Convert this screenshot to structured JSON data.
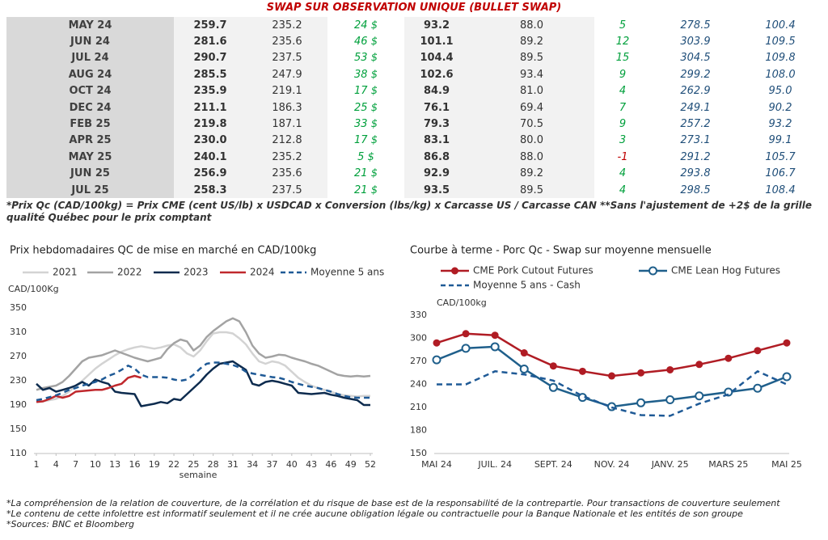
{
  "header": {
    "title": "SWAP SUR OBSERVATION UNIQUE (BULLET SWAP)"
  },
  "table": {
    "rows": [
      [
        "MAY 24",
        "259.7",
        "235.2",
        "24 $",
        "93.2",
        "88.0",
        "5",
        "278.5",
        "100.4"
      ],
      [
        "JUN 24",
        "281.6",
        "235.6",
        "46 $",
        "101.1",
        "89.2",
        "12",
        "303.9",
        "109.5"
      ],
      [
        "JUL 24",
        "290.7",
        "237.5",
        "53 $",
        "104.4",
        "89.5",
        "15",
        "304.5",
        "109.8"
      ],
      [
        "AUG 24",
        "285.5",
        "247.9",
        "38 $",
        "102.6",
        "93.4",
        "9",
        "299.2",
        "108.0"
      ],
      [
        "OCT 24",
        "235.9",
        "219.1",
        "17 $",
        "84.9",
        "81.0",
        "4",
        "262.9",
        "95.0"
      ],
      [
        "DEC 24",
        "211.1",
        "186.3",
        "25 $",
        "76.1",
        "69.4",
        "7",
        "249.1",
        "90.2"
      ],
      [
        "FEB 25",
        "219.8",
        "187.1",
        "33 $",
        "79.3",
        "70.5",
        "9",
        "257.2",
        "93.2"
      ],
      [
        "APR 25",
        "230.0",
        "212.8",
        "17 $",
        "83.1",
        "80.0",
        "3",
        "273.1",
        "99.1"
      ],
      [
        "MAY 25",
        "240.1",
        "235.2",
        "5 $",
        "86.8",
        "88.0",
        "-1",
        "291.2",
        "105.7"
      ],
      [
        "JUN 25",
        "256.9",
        "235.6",
        "21 $",
        "92.9",
        "89.2",
        "4",
        "293.8",
        "106.7"
      ],
      [
        "JUL 25",
        "258.3",
        "237.5",
        "21 $",
        "93.5",
        "89.5",
        "4",
        "298.5",
        "108.4"
      ]
    ]
  },
  "table_note": "*Prix Qc (CAD/100kg) = Prix CME (cent US/lb) x USDCAD x Conversion (lbs/kg) x Carcasse US / Carcasse CAN **Sans l'ajustement de +2$ de la grille qualité Québec pour le prix comptant",
  "chart_data": [
    {
      "type": "line",
      "title": "Prix hebdomadaires QC de mise en marché en CAD/100kg",
      "y_label": "CAD/100Kg",
      "x_label": "semaine",
      "x": [
        1,
        2,
        3,
        4,
        5,
        6,
        7,
        8,
        9,
        10,
        11,
        12,
        13,
        14,
        15,
        16,
        17,
        18,
        19,
        20,
        21,
        22,
        23,
        24,
        25,
        26,
        27,
        28,
        29,
        30,
        31,
        32,
        33,
        34,
        35,
        36,
        37,
        38,
        39,
        40,
        41,
        42,
        43,
        44,
        45,
        46,
        47,
        48,
        49,
        50,
        51,
        52
      ],
      "xlim": [
        1,
        52
      ],
      "xticks": [
        1,
        4,
        7,
        10,
        13,
        16,
        19,
        22,
        25,
        28,
        31,
        34,
        37,
        40,
        43,
        46,
        49,
        52
      ],
      "ylim": [
        110,
        350
      ],
      "yticks": [
        110,
        150,
        190,
        230,
        270,
        310,
        350
      ],
      "grid": false,
      "series": [
        {
          "name": "2021",
          "color": "#d3d3d3",
          "style": "solid",
          "values": [
            195,
            196,
            198,
            200,
            205,
            212,
            222,
            230,
            240,
            250,
            258,
            265,
            272,
            278,
            282,
            285,
            287,
            285,
            283,
            285,
            288,
            290,
            285,
            275,
            270,
            280,
            295,
            308,
            310,
            310,
            308,
            300,
            290,
            275,
            262,
            258,
            262,
            260,
            255,
            245,
            235,
            228,
            222,
            218,
            215,
            212,
            208,
            206,
            205,
            204,
            205,
            205
          ]
        },
        {
          "name": "2022",
          "color": "#a3a3a3",
          "style": "solid",
          "values": [
            215,
            218,
            220,
            222,
            228,
            238,
            250,
            262,
            268,
            270,
            272,
            276,
            280,
            276,
            272,
            268,
            265,
            262,
            265,
            268,
            282,
            292,
            298,
            295,
            280,
            288,
            302,
            312,
            320,
            328,
            333,
            328,
            310,
            288,
            275,
            268,
            270,
            273,
            272,
            268,
            265,
            262,
            258,
            255,
            250,
            245,
            240,
            238,
            237,
            238,
            237,
            238
          ]
        },
        {
          "name": "2023",
          "color": "#0d2b4e",
          "style": "solid",
          "values": [
            225,
            215,
            218,
            212,
            215,
            218,
            222,
            228,
            222,
            232,
            228,
            225,
            212,
            210,
            209,
            208,
            188,
            190,
            192,
            195,
            193,
            200,
            198,
            208,
            218,
            228,
            240,
            250,
            258,
            260,
            262,
            255,
            248,
            225,
            222,
            228,
            230,
            228,
            225,
            222,
            210,
            209,
            208,
            209,
            210,
            207,
            205,
            202,
            200,
            198,
            190,
            190
          ]
        },
        {
          "name": "2024",
          "color": "#c0282d",
          "style": "solid",
          "values": [
            195,
            196,
            200,
            205,
            202,
            205,
            212,
            213,
            214,
            215,
            215,
            218,
            222,
            225,
            235,
            238,
            235,
            null,
            null,
            null,
            null,
            null,
            null,
            null,
            null,
            null,
            null,
            null,
            null,
            null,
            null,
            null,
            null,
            null,
            null,
            null,
            null,
            null,
            null,
            null,
            null,
            null,
            null,
            null,
            null,
            null,
            null,
            null,
            null,
            null,
            null,
            null
          ]
        },
        {
          "name": "Moyenne 5 ans",
          "color": "#1f5a96",
          "style": "dashed",
          "values": [
            198,
            200,
            203,
            206,
            210,
            215,
            218,
            222,
            225,
            228,
            232,
            238,
            242,
            248,
            255,
            250,
            240,
            236,
            236,
            236,
            235,
            232,
            230,
            232,
            240,
            250,
            258,
            260,
            260,
            258,
            256,
            252,
            245,
            242,
            240,
            238,
            236,
            235,
            232,
            228,
            225,
            222,
            220,
            218,
            215,
            212,
            208,
            205,
            203,
            202,
            202,
            202
          ]
        }
      ]
    },
    {
      "type": "line",
      "title": "Courbe à terme - Porc Qc - Swap sur moyenne mensuelle",
      "y_label": "CAD/100kg",
      "categories": [
        "MAI 24",
        null,
        "JUIL. 24",
        null,
        "SEPT. 24",
        null,
        "NOV. 24",
        null,
        "JANV. 25",
        null,
        "MARS 25",
        null,
        "MAI 25"
      ],
      "ylim": [
        150,
        330
      ],
      "yticks": [
        150,
        180,
        210,
        240,
        270,
        300,
        330
      ],
      "grid": false,
      "series": [
        {
          "name": "CME Pork Cutout Futures",
          "color": "#b01c24",
          "style": "solid",
          "marker": "filled",
          "values": [
            294,
            306,
            304,
            281,
            264,
            257,
            251,
            255,
            259,
            266,
            274,
            284,
            294
          ]
        },
        {
          "name": "CME Lean Hog Futures",
          "color": "#1f5f8b",
          "style": "solid",
          "marker": "open",
          "values": [
            272,
            287,
            289,
            260,
            236,
            223,
            211,
            216,
            220,
            225,
            230,
            235,
            250
          ]
        },
        {
          "name": "Moyenne 5 ans - Cash",
          "color": "#1f5a96",
          "style": "dashed",
          "values": [
            240,
            240,
            257,
            253,
            245,
            225,
            210,
            200,
            199,
            215,
            227,
            257,
            240
          ]
        }
      ]
    }
  ],
  "notes": [
    "*La compréhension de la relation de couverture, de la corrélation et du risque de base est de la responsabilité de la contrepartie. Pour transactions de couverture seulement",
    "*Le contenu de cette infolettre est informatif seulement et il ne crée aucune obligation légale ou contractuelle pour la Banque Nationale et les entités de son groupe",
    "*Sources: BNC et Bloomberg"
  ]
}
